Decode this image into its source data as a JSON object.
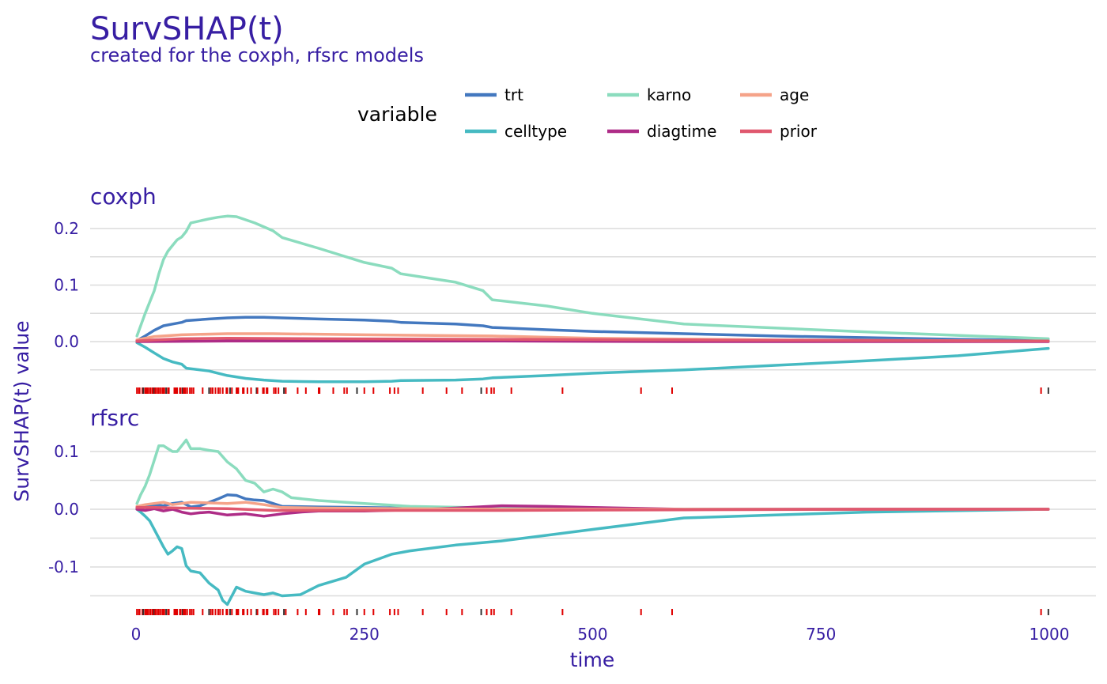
{
  "chart_data": {
    "type": "line",
    "title": "SurvSHAP(t)",
    "subtitle": "created for the coxph, rfsrc models",
    "xlabel": "time",
    "ylabel": "SurvSHAP(t) value",
    "xlim": [
      0,
      1000
    ],
    "x_ticks": [
      0,
      250,
      500,
      750,
      1000
    ],
    "grid": true,
    "legend": {
      "title": "variable",
      "position": "top",
      "entries": [
        {
          "name": "trt",
          "color": "#4378bf"
        },
        {
          "name": "celltype",
          "color": "#46bac2"
        },
        {
          "name": "karno",
          "color": "#8bdcbe"
        },
        {
          "name": "diagtime",
          "color": "#ae2c87"
        },
        {
          "name": "age",
          "color": "#f5a389"
        },
        {
          "name": "prior",
          "color": "#e0586e"
        }
      ]
    },
    "rug_times": [
      1,
      3,
      4,
      7,
      8,
      10,
      11,
      12,
      13,
      15,
      16,
      18,
      19,
      20,
      21,
      22,
      24,
      25,
      27,
      29,
      30,
      31,
      33,
      35,
      36,
      42,
      43,
      44,
      45,
      48,
      49,
      51,
      52,
      53,
      54,
      56,
      59,
      61,
      63,
      73,
      80,
      82,
      84,
      87,
      90,
      92,
      95,
      99,
      100,
      103,
      105,
      110,
      111,
      112,
      117,
      118,
      122,
      126,
      132,
      133,
      139,
      140,
      143,
      144,
      151,
      153,
      156,
      162,
      164,
      177,
      186,
      200,
      201,
      216,
      228,
      231,
      242,
      250,
      260,
      278,
      283,
      287,
      314,
      340,
      357,
      378,
      384,
      389,
      392,
      411,
      467,
      553,
      587,
      991,
      999
    ],
    "panels": [
      {
        "name": "coxph",
        "ylim": [
          -0.08,
          0.22
        ],
        "y_ticks": [
          0.0,
          0.1,
          0.2
        ],
        "y_tick_labels": [
          "0.0",
          "0.1",
          "0.2"
        ],
        "series": [
          {
            "name": "trt",
            "color": "#4378bf",
            "x": [
              1,
              10,
              20,
              30,
              40,
              50,
              55,
              80,
              100,
              120,
              140,
              160,
              200,
              250,
              280,
              290,
              350,
              380,
              390,
              450,
              500,
              600,
              700,
              800,
              900,
              999
            ],
            "y": [
              0.002,
              0.01,
              0.02,
              0.028,
              0.031,
              0.034,
              0.037,
              0.04,
              0.042,
              0.043,
              0.043,
              0.042,
              0.04,
              0.038,
              0.036,
              0.034,
              0.031,
              0.028,
              0.025,
              0.021,
              0.018,
              0.014,
              0.01,
              0.007,
              0.004,
              0.002
            ]
          },
          {
            "name": "celltype",
            "color": "#46bac2",
            "x": [
              1,
              10,
              20,
              30,
              40,
              50,
              55,
              80,
              100,
              120,
              140,
              160,
              200,
              250,
              280,
              290,
              350,
              380,
              390,
              450,
              500,
              600,
              700,
              800,
              900,
              999
            ],
            "y": [
              -0.002,
              -0.01,
              -0.02,
              -0.03,
              -0.036,
              -0.04,
              -0.047,
              -0.052,
              -0.06,
              -0.065,
              -0.068,
              -0.07,
              -0.071,
              -0.071,
              -0.07,
              -0.069,
              -0.068,
              -0.066,
              -0.064,
              -0.06,
              -0.056,
              -0.05,
              -0.042,
              -0.034,
              -0.025,
              -0.012
            ]
          },
          {
            "name": "karno",
            "color": "#8bdcbe",
            "x": [
              1,
              10,
              20,
              25,
              30,
              35,
              40,
              45,
              50,
              55,
              60,
              80,
              90,
              100,
              110,
              130,
              150,
              160,
              200,
              250,
              280,
              290,
              350,
              380,
              390,
              450,
              500,
              600,
              700,
              800,
              900,
              999
            ],
            "y": [
              0.01,
              0.05,
              0.09,
              0.12,
              0.145,
              0.16,
              0.17,
              0.18,
              0.185,
              0.195,
              0.21,
              0.217,
              0.22,
              0.222,
              0.221,
              0.21,
              0.196,
              0.184,
              0.165,
              0.14,
              0.13,
              0.12,
              0.105,
              0.09,
              0.074,
              0.063,
              0.05,
              0.031,
              0.024,
              0.017,
              0.011,
              0.005
            ]
          },
          {
            "name": "diagtime",
            "color": "#ae2c87",
            "x": [
              1,
              100,
              200,
              400,
              600,
              800,
              999
            ],
            "y": [
              0.0,
              0.001,
              0.001,
              0.001,
              0.0,
              0.0,
              0.0
            ]
          },
          {
            "name": "age",
            "color": "#f5a389",
            "x": [
              1,
              20,
              50,
              100,
              150,
              250,
              390,
              500,
              700,
              999
            ],
            "y": [
              0.003,
              0.009,
              0.012,
              0.014,
              0.014,
              0.012,
              0.01,
              0.006,
              0.003,
              0.001
            ]
          },
          {
            "name": "prior",
            "color": "#e0586e",
            "x": [
              1,
              20,
              50,
              100,
              200,
              400,
              600,
              800,
              999
            ],
            "y": [
              0.001,
              0.003,
              0.005,
              0.006,
              0.005,
              0.004,
              0.003,
              0.002,
              0.001
            ]
          }
        ]
      },
      {
        "name": "rfsrc",
        "ylim": [
          -0.17,
          0.12
        ],
        "y_ticks": [
          -0.1,
          0.0,
          0.1
        ],
        "y_tick_labels": [
          "-0.1",
          "0.0",
          "0.1"
        ],
        "series": [
          {
            "name": "trt",
            "color": "#4378bf",
            "x": [
              1,
              10,
              20,
              30,
              40,
              50,
              60,
              70,
              80,
              90,
              100,
              110,
              120,
              130,
              140,
              150,
              160,
              200,
              250,
              300,
              400,
              600,
              999
            ],
            "y": [
              0.002,
              0.005,
              0.008,
              0.006,
              0.01,
              0.012,
              0.004,
              0.006,
              0.012,
              0.018,
              0.025,
              0.024,
              0.018,
              0.016,
              0.015,
              0.01,
              0.005,
              0.004,
              0.003,
              0.002,
              0.001,
              0.0,
              0.0
            ]
          },
          {
            "name": "celltype",
            "color": "#46bac2",
            "x": [
              1,
              5,
              10,
              15,
              20,
              25,
              30,
              35,
              40,
              45,
              50,
              55,
              60,
              70,
              80,
              90,
              95,
              100,
              110,
              120,
              130,
              140,
              150,
              160,
              180,
              200,
              230,
              250,
              280,
              300,
              350,
              400,
              450,
              500,
              600,
              700,
              800,
              999
            ],
            "y": [
              0.0,
              -0.005,
              -0.012,
              -0.02,
              -0.035,
              -0.05,
              -0.065,
              -0.078,
              -0.072,
              -0.065,
              -0.068,
              -0.098,
              -0.107,
              -0.11,
              -0.128,
              -0.14,
              -0.158,
              -0.165,
              -0.135,
              -0.142,
              -0.145,
              -0.148,
              -0.145,
              -0.15,
              -0.148,
              -0.132,
              -0.118,
              -0.095,
              -0.078,
              -0.072,
              -0.062,
              -0.055,
              -0.045,
              -0.035,
              -0.015,
              -0.01,
              -0.005,
              0.0
            ]
          },
          {
            "name": "karno",
            "color": "#8bdcbe",
            "x": [
              1,
              5,
              10,
              15,
              20,
              25,
              30,
              35,
              40,
              45,
              50,
              55,
              60,
              70,
              80,
              90,
              100,
              110,
              120,
              130,
              140,
              150,
              160,
              170,
              200,
              250,
              300,
              400,
              500,
              600,
              999
            ],
            "y": [
              0.01,
              0.025,
              0.04,
              0.06,
              0.085,
              0.11,
              0.11,
              0.105,
              0.1,
              0.1,
              0.11,
              0.12,
              0.105,
              0.105,
              0.102,
              0.1,
              0.082,
              0.07,
              0.05,
              0.045,
              0.03,
              0.035,
              0.03,
              0.02,
              0.015,
              0.01,
              0.005,
              0.002,
              0.001,
              0.0,
              0.0
            ]
          },
          {
            "name": "diagtime",
            "color": "#ae2c87",
            "x": [
              1,
              10,
              20,
              30,
              40,
              50,
              60,
              70,
              80,
              100,
              120,
              140,
              160,
              180,
              200,
              250,
              300,
              350,
              400,
              450,
              500,
              600,
              700,
              999
            ],
            "y": [
              0.0,
              -0.002,
              0.001,
              -0.003,
              0.0,
              -0.005,
              -0.008,
              -0.006,
              -0.005,
              -0.01,
              -0.008,
              -0.012,
              -0.008,
              -0.005,
              -0.003,
              -0.003,
              -0.001,
              0.002,
              0.006,
              0.005,
              0.003,
              0.0,
              0.0,
              0.0
            ]
          },
          {
            "name": "age",
            "color": "#f5a389",
            "x": [
              1,
              10,
              20,
              30,
              40,
              50,
              60,
              80,
              100,
              120,
              140,
              160,
              200,
              300,
              400,
              600,
              999
            ],
            "y": [
              0.005,
              0.008,
              0.01,
              0.012,
              0.008,
              0.01,
              0.012,
              0.011,
              0.01,
              0.012,
              0.008,
              0.003,
              0.002,
              0.001,
              0.0,
              0.0,
              0.0
            ]
          },
          {
            "name": "prior",
            "color": "#e0586e",
            "x": [
              1,
              20,
              50,
              100,
              150,
              200,
              300,
              400,
              600,
              800,
              999
            ],
            "y": [
              0.003,
              0.003,
              0.002,
              0.001,
              -0.002,
              -0.002,
              -0.002,
              -0.002,
              -0.001,
              0.0,
              0.0
            ]
          }
        ]
      }
    ]
  }
}
